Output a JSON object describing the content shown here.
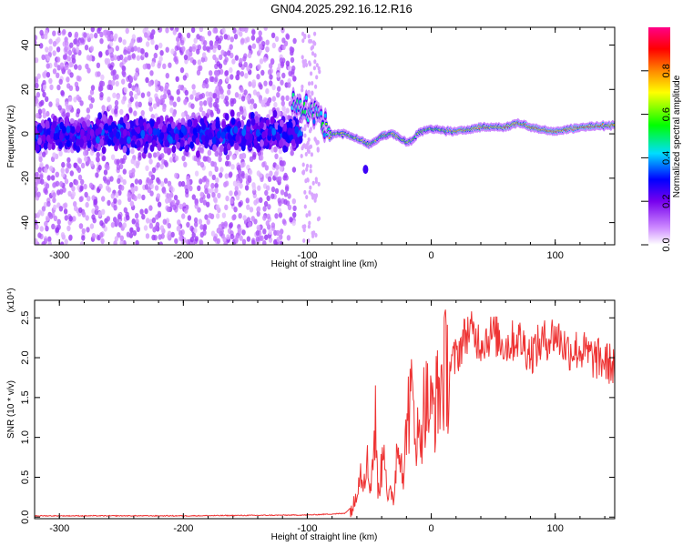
{
  "title": "GN04.2025.292.16.12.R16",
  "chart_data": [
    {
      "type": "heatmap",
      "xlabel": "Height of straight line (km)",
      "ylabel": "Frequency (Hz)",
      "xlim": [
        -320,
        148
      ],
      "ylim": [
        -50,
        48
      ],
      "xticks": [
        -300,
        -200,
        -100,
        0,
        100
      ],
      "yticks": [
        -40,
        -20,
        0,
        20,
        40
      ],
      "colorbar": {
        "label": "Normalized spectral amplitude",
        "range": [
          0.0,
          1.0
        ],
        "ticks": [
          0.0,
          0.2,
          0.4,
          0.6,
          0.8
        ],
        "tick_labels": [
          "0.0",
          "0.2",
          "0.4",
          "0.6",
          "0.8"
        ],
        "colors": [
          "#ffffff",
          "#7700ee",
          "#0000ff",
          "#00ddff",
          "#00ff00",
          "#ffff00",
          "#ff8800",
          "#ff0000",
          "#ff0088"
        ]
      },
      "ridge": {
        "x": [
          -110,
          -100,
          -90,
          -85,
          -80,
          -70,
          -60,
          -50,
          -40,
          -30,
          -20,
          -15,
          -10,
          0,
          20,
          40,
          60,
          70,
          80,
          100,
          120,
          148
        ],
        "y": [
          15,
          10,
          8,
          2,
          0,
          0,
          -2,
          -5,
          -1,
          0,
          -4,
          -3,
          1,
          2,
          1,
          3,
          3,
          5,
          3,
          1,
          3,
          4
        ]
      }
    },
    {
      "type": "line",
      "xlabel": "Height of straight line (km)",
      "ylabel": "SNR (10 * v/v)",
      "ylabel_exponent": "(x10⁴)",
      "xlim": [
        -320,
        148
      ],
      "ylim": [
        -0.02,
        2.72
      ],
      "xticks": [
        -300,
        -200,
        -100,
        0,
        100
      ],
      "yticks": [
        0.0,
        0.5,
        1.0,
        1.5,
        2.0,
        2.5
      ],
      "ytick_labels": [
        "0.0",
        "0.5",
        "1.0",
        "1.5",
        "2.0",
        "2.5"
      ],
      "series": [
        {
          "color": "#ee3333",
          "x": [
            -320,
            -200,
            -100,
            -70,
            -62,
            -58,
            -55,
            -52,
            -50,
            -48,
            -45,
            -43,
            -40,
            -38,
            -35,
            -33,
            -30,
            -28,
            -25,
            -22,
            -20,
            -15,
            -10,
            -5,
            0,
            5,
            10,
            15,
            20,
            25,
            30,
            40,
            50,
            60,
            70,
            80,
            90,
            100,
            110,
            120,
            130,
            140,
            148
          ],
          "y": [
            0.01,
            0.01,
            0.02,
            0.04,
            0.15,
            0.6,
            0.5,
            0.75,
            0.4,
            0.55,
            1.2,
            0.3,
            0.6,
            1.1,
            0.15,
            0.3,
            0.25,
            0.8,
            1.0,
            0.4,
            1.3,
            1.45,
            0.9,
            1.5,
            1.3,
            1.5,
            1.8,
            1.9,
            2.0,
            2.2,
            2.35,
            2.2,
            2.3,
            2.15,
            2.25,
            2.05,
            2.2,
            2.3,
            2.1,
            2.1,
            2.0,
            1.95,
            1.9
          ]
        }
      ]
    }
  ]
}
